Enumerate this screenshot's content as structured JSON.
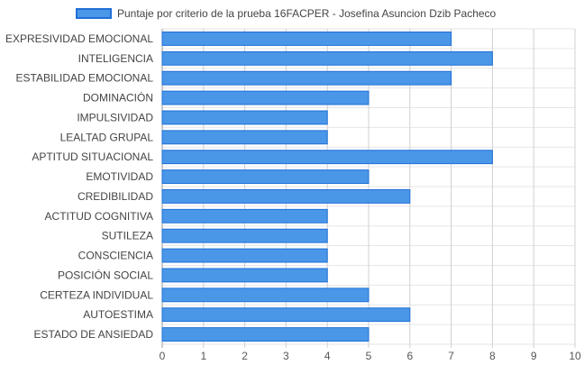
{
  "chart_data": {
    "type": "bar",
    "orientation": "horizontal",
    "categories": [
      "EXPRESIVIDAD EMOCIONAL",
      "INTELIGENCIA",
      "ESTABILIDAD EMOCIONAL",
      "DOMINACIÓN",
      "IMPULSIVIDAD",
      "LEALTAD GRUPAL",
      "APTITUD SITUACIONAL",
      "EMOTIVIDAD",
      "CREDIBILIDAD",
      "ACTITUD COGNITIVA",
      "SUTILEZA",
      "CONSCIENCIA",
      "POSICIÓN SOCIAL",
      "CERTEZA INDIVIDUAL",
      "AUTOESTIMA",
      "ESTADO DE ANSIEDAD"
    ],
    "series": [
      {
        "name": "Puntaje por criterio de la prueba 16FACPER - Josefina Asuncion Dzib Pacheco",
        "values": [
          7,
          8,
          7,
          5,
          4,
          4,
          8,
          5,
          6,
          4,
          4,
          4,
          4,
          5,
          6,
          5
        ]
      }
    ],
    "xlim": [
      0,
      10
    ],
    "xticks": [
      "0",
      "1",
      "2",
      "3",
      "4",
      "5",
      "6",
      "7",
      "8",
      "9",
      "10"
    ],
    "grid": true,
    "legend_position": "top-center",
    "colors": {
      "bar_fill": "#4a97e8",
      "bar_border": "#1f6fd6",
      "grid": "#d9d9d9",
      "label": "#444444"
    }
  }
}
